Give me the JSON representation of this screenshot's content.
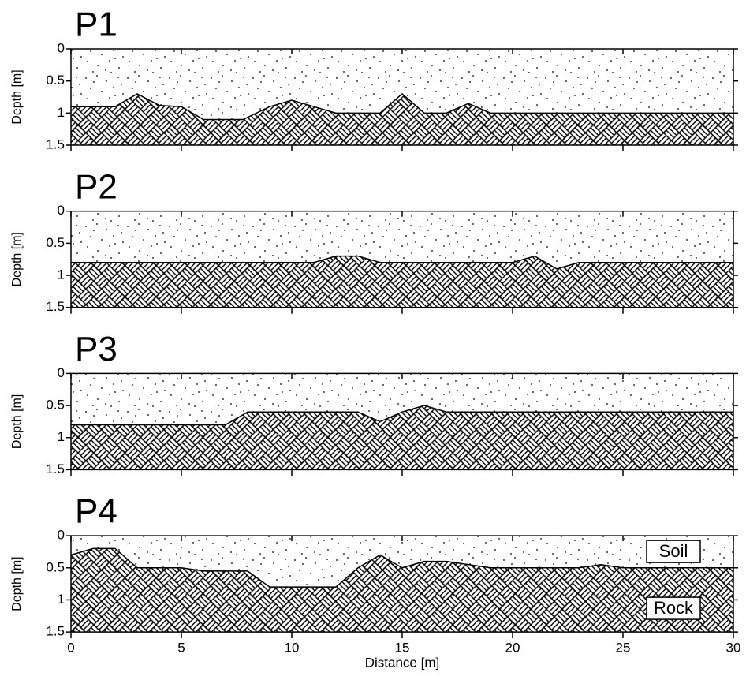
{
  "chart_data": [
    {
      "type": "profile",
      "title": "P1",
      "ylabel": "Depth [m]",
      "x": [
        0,
        2,
        3,
        4,
        5,
        6,
        7.8,
        9,
        10,
        11,
        12,
        14,
        15,
        16,
        17,
        18,
        19,
        30
      ],
      "values": [
        0.9,
        0.9,
        0.7,
        0.88,
        0.9,
        1.1,
        1.1,
        0.9,
        0.8,
        0.9,
        1.0,
        1.0,
        0.7,
        1.0,
        1.0,
        0.85,
        1.0,
        1.0
      ],
      "xlim": [
        0,
        30
      ],
      "xticks": [
        0,
        5,
        10,
        15,
        20,
        25,
        30
      ],
      "xticklabels": false,
      "ylim": [
        0,
        1.5
      ],
      "yticks": [
        0,
        0.5,
        1,
        1.5
      ],
      "y_inverted": true
    },
    {
      "type": "profile",
      "title": "P2",
      "ylabel": "Depth [m]",
      "x": [
        0,
        11,
        12,
        13,
        14,
        20,
        21,
        22,
        23,
        30
      ],
      "values": [
        0.8,
        0.8,
        0.7,
        0.7,
        0.8,
        0.8,
        0.7,
        0.9,
        0.8,
        0.8
      ],
      "xlim": [
        0,
        30
      ],
      "xticks": [
        0,
        5,
        10,
        15,
        20,
        25,
        30
      ],
      "xticklabels": false,
      "ylim": [
        0,
        1.5
      ],
      "yticks": [
        0,
        0.5,
        1,
        1.5
      ],
      "y_inverted": true
    },
    {
      "type": "profile",
      "title": "P3",
      "ylabel": "Depth [m]",
      "x": [
        0,
        7,
        8,
        13,
        14,
        15,
        16,
        17,
        30
      ],
      "values": [
        0.8,
        0.8,
        0.6,
        0.6,
        0.75,
        0.6,
        0.5,
        0.6,
        0.6
      ],
      "xlim": [
        0,
        30
      ],
      "xticks": [
        0,
        5,
        10,
        15,
        20,
        25,
        30
      ],
      "xticklabels": false,
      "ylim": [
        0,
        1.5
      ],
      "yticks": [
        0,
        0.5,
        1,
        1.5
      ],
      "y_inverted": true
    },
    {
      "type": "profile",
      "title": "P4",
      "ylabel": "Depth [m]",
      "xlabel": "Distance [m]",
      "x": [
        0,
        1,
        2,
        3,
        5,
        6,
        8,
        9,
        12,
        13,
        14,
        15,
        16,
        17,
        19,
        23,
        24,
        25,
        30
      ],
      "values": [
        0.3,
        0.2,
        0.2,
        0.5,
        0.5,
        0.55,
        0.55,
        0.8,
        0.8,
        0.5,
        0.3,
        0.5,
        0.4,
        0.4,
        0.5,
        0.5,
        0.45,
        0.5,
        0.5
      ],
      "xlim": [
        0,
        30
      ],
      "xticks": [
        0,
        5,
        10,
        15,
        20,
        25,
        30
      ],
      "xticklabels": true,
      "ylim": [
        0,
        1.5
      ],
      "yticks": [
        0,
        0.5,
        1,
        1.5
      ],
      "y_inverted": true,
      "legend_labels": [
        "Soil",
        "Rock"
      ]
    }
  ]
}
